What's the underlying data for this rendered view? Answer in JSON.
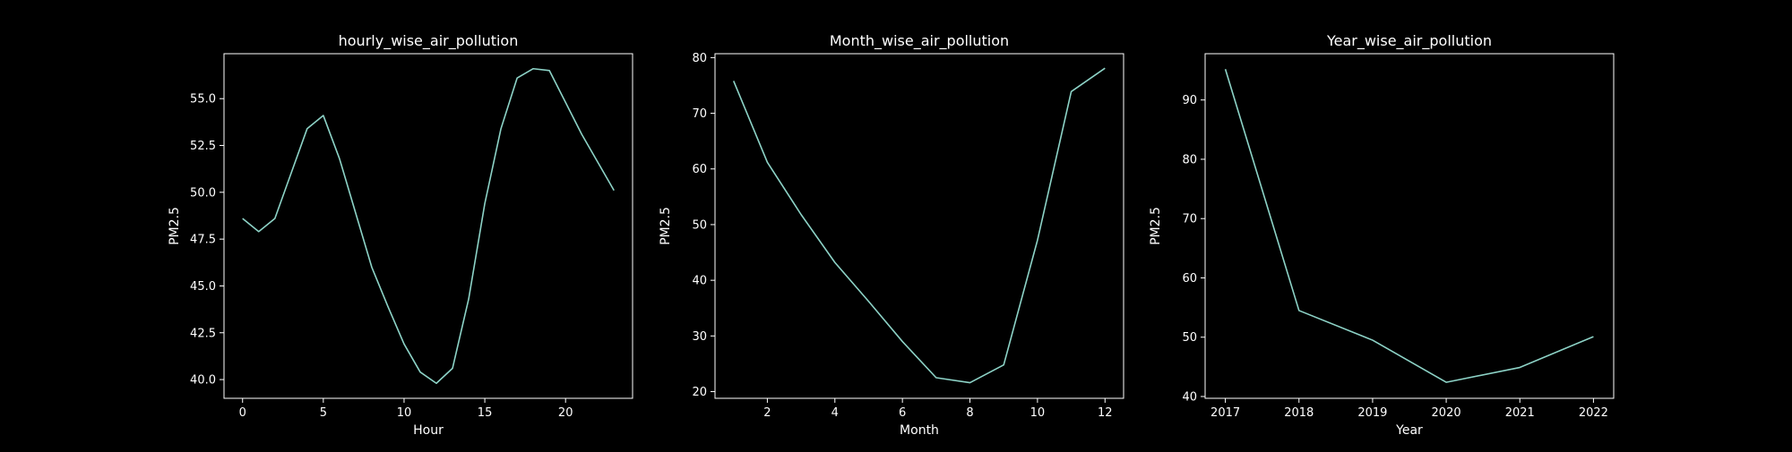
{
  "figure": {
    "background": "#000000",
    "line_color": "#8dd3c7",
    "axes_color": "#ffffff"
  },
  "chart_data": [
    {
      "type": "line",
      "title": "hourly_wise_air_pollution",
      "xlabel": "Hour",
      "ylabel": "PM2.5",
      "xlim": [
        -1.15,
        24.15
      ],
      "ylim": [
        39.0,
        57.4
      ],
      "xticks": [
        0,
        5,
        10,
        15,
        20
      ],
      "xtick_labels": [
        "0",
        "5",
        "10",
        "15",
        "20"
      ],
      "yticks": [
        40.0,
        42.5,
        45.0,
        47.5,
        50.0,
        52.5,
        55.0
      ],
      "ytick_labels": [
        "40.0",
        "42.5",
        "45.0",
        "47.5",
        "50.0",
        "52.5",
        "55.0"
      ],
      "grid": false,
      "x": [
        0,
        1,
        2,
        3,
        4,
        5,
        6,
        7,
        8,
        9,
        10,
        11,
        12,
        13,
        14,
        15,
        16,
        17,
        18,
        19,
        20,
        21,
        22,
        23
      ],
      "y": [
        48.6,
        47.9,
        48.6,
        51.0,
        53.4,
        54.1,
        51.8,
        48.9,
        46.0,
        43.9,
        41.9,
        40.4,
        39.8,
        40.6,
        44.3,
        49.4,
        53.4,
        56.1,
        56.6,
        56.5,
        54.8,
        53.1,
        51.6,
        50.1
      ]
    },
    {
      "type": "line",
      "title": "Month_wise_air_pollution",
      "xlabel": "Month",
      "ylabel": "PM2.5",
      "xlim": [
        0.45,
        12.55
      ],
      "ylim": [
        18.8,
        80.7
      ],
      "xticks": [
        2,
        4,
        6,
        8,
        10,
        12
      ],
      "xtick_labels": [
        "2",
        "4",
        "6",
        "8",
        "10",
        "12"
      ],
      "yticks": [
        20,
        30,
        40,
        50,
        60,
        70,
        80
      ],
      "ytick_labels": [
        "20",
        "30",
        "40",
        "50",
        "60",
        "70",
        "80"
      ],
      "grid": false,
      "x": [
        1,
        2,
        3,
        4,
        5,
        6,
        7,
        8,
        9,
        10,
        11,
        12
      ],
      "y": [
        75.8,
        61.2,
        51.8,
        43.2,
        36.2,
        29.0,
        22.5,
        21.6,
        24.8,
        47.2,
        73.9,
        78.1
      ]
    },
    {
      "type": "line",
      "title": "Year_wise_air_pollution",
      "xlabel": "Year",
      "ylabel": "PM2.5",
      "xlim": [
        2016.725,
        2022.275
      ],
      "ylim": [
        39.7,
        97.8
      ],
      "xticks": [
        2017,
        2018,
        2019,
        2020,
        2021,
        2022
      ],
      "xtick_labels": [
        "2017",
        "2018",
        "2019",
        "2020",
        "2021",
        "2022"
      ],
      "yticks": [
        40,
        50,
        60,
        70,
        80,
        90
      ],
      "ytick_labels": [
        "40",
        "50",
        "60",
        "70",
        "80",
        "90"
      ],
      "grid": false,
      "x": [
        2017,
        2018,
        2019,
        2020,
        2021,
        2022
      ],
      "y": [
        95.2,
        54.5,
        49.5,
        42.4,
        44.9,
        50.1
      ]
    }
  ]
}
